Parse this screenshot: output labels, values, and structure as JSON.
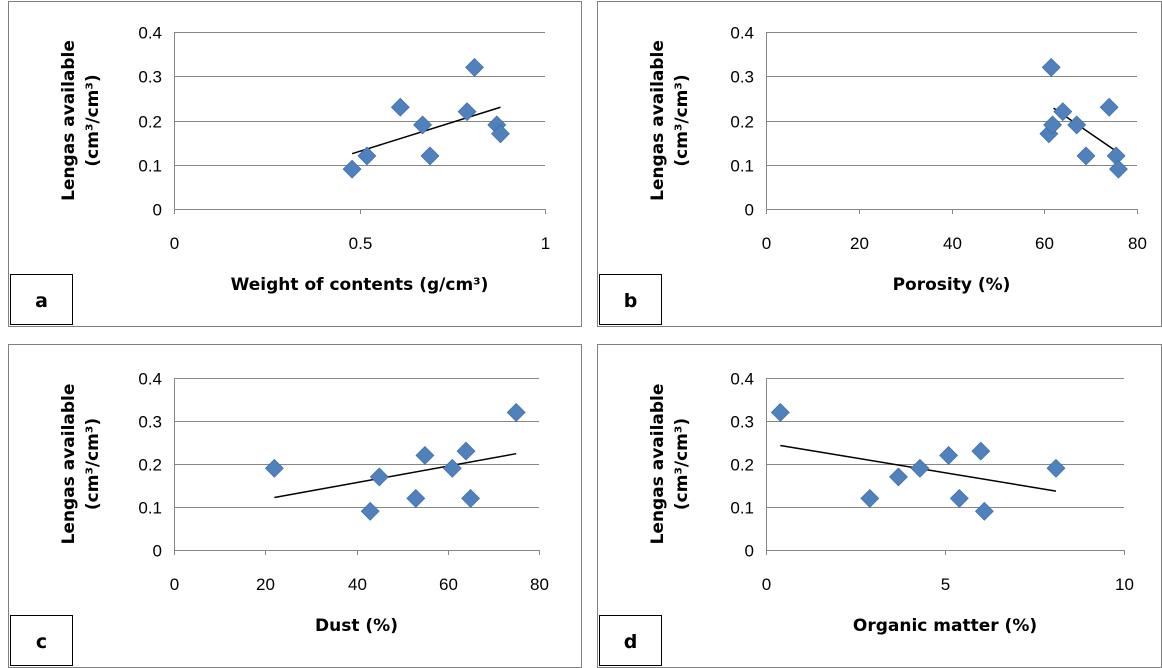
{
  "chart_data": [
    {
      "type": "scatter",
      "panel_label": "a",
      "xlabel": "Weight of contents (g/cm³)",
      "ylabel_line1": "Lengas available",
      "ylabel_line2": "(cm³/cm³)",
      "xlim": [
        0,
        1
      ],
      "ylim": [
        0,
        0.4
      ],
      "x_ticks": [
        0,
        0.5,
        1
      ],
      "x_tick_labels": [
        "0",
        "0.5",
        "1"
      ],
      "y_ticks": [
        0,
        0.1,
        0.2,
        0.3,
        0.4
      ],
      "y_tick_labels": [
        "0",
        "0.1",
        "0.2",
        "0.3",
        "0.4"
      ],
      "grid": "horizontal",
      "marker": "diamond",
      "marker_color": "#4f81bd",
      "points": [
        {
          "x": 0.48,
          "y": 0.09
        },
        {
          "x": 0.52,
          "y": 0.12
        },
        {
          "x": 0.61,
          "y": 0.23
        },
        {
          "x": 0.67,
          "y": 0.19
        },
        {
          "x": 0.69,
          "y": 0.12
        },
        {
          "x": 0.79,
          "y": 0.22
        },
        {
          "x": 0.81,
          "y": 0.32
        },
        {
          "x": 0.87,
          "y": 0.19
        },
        {
          "x": 0.88,
          "y": 0.17
        }
      ],
      "trendline": {
        "x1": 0.48,
        "y1": 0.125,
        "x2": 0.88,
        "y2": 0.23
      }
    },
    {
      "type": "scatter",
      "panel_label": "b",
      "xlabel": "Porosity (%)",
      "ylabel_line1": "Lengas available",
      "ylabel_line2": "(cm³/cm³)",
      "xlim": [
        0,
        80
      ],
      "ylim": [
        0,
        0.4
      ],
      "x_ticks": [
        0,
        20,
        40,
        60,
        80
      ],
      "x_tick_labels": [
        "0",
        "20",
        "40",
        "60",
        "80"
      ],
      "y_ticks": [
        0,
        0.1,
        0.2,
        0.3,
        0.4
      ],
      "y_tick_labels": [
        "0",
        "0.1",
        "0.2",
        "0.3",
        "0.4"
      ],
      "grid": "horizontal",
      "marker": "diamond",
      "marker_color": "#4f81bd",
      "points": [
        {
          "x": 61.5,
          "y": 0.32
        },
        {
          "x": 61,
          "y": 0.17
        },
        {
          "x": 61.8,
          "y": 0.19
        },
        {
          "x": 64,
          "y": 0.22
        },
        {
          "x": 67,
          "y": 0.19
        },
        {
          "x": 69,
          "y": 0.12
        },
        {
          "x": 74,
          "y": 0.23
        },
        {
          "x": 75.5,
          "y": 0.12
        },
        {
          "x": 76,
          "y": 0.09
        }
      ],
      "trendline": {
        "x1": 62,
        "y1": 0.228,
        "x2": 76,
        "y2": 0.127
      }
    },
    {
      "type": "scatter",
      "panel_label": "c",
      "xlabel": "Dust (%)",
      "ylabel_line1": "Lengas available",
      "ylabel_line2": "(cm³/cm³)",
      "xlim": [
        0,
        80
      ],
      "ylim": [
        0,
        0.4
      ],
      "x_ticks": [
        0,
        20,
        40,
        60,
        80
      ],
      "x_tick_labels": [
        "0",
        "20",
        "40",
        "60",
        "80"
      ],
      "y_ticks": [
        0,
        0.1,
        0.2,
        0.3,
        0.4
      ],
      "y_tick_labels": [
        "0",
        "0.1",
        "0.2",
        "0.3",
        "0.4"
      ],
      "grid": "horizontal",
      "marker": "diamond",
      "marker_color": "#4f81bd",
      "points": [
        {
          "x": 22,
          "y": 0.19
        },
        {
          "x": 43,
          "y": 0.09
        },
        {
          "x": 45,
          "y": 0.17
        },
        {
          "x": 53,
          "y": 0.12
        },
        {
          "x": 55,
          "y": 0.22
        },
        {
          "x": 61,
          "y": 0.19
        },
        {
          "x": 64,
          "y": 0.23
        },
        {
          "x": 65,
          "y": 0.12
        },
        {
          "x": 75,
          "y": 0.32
        }
      ],
      "trendline": {
        "x1": 22,
        "y1": 0.122,
        "x2": 75,
        "y2": 0.224
      }
    },
    {
      "type": "scatter",
      "panel_label": "d",
      "xlabel": "Organic matter (%)",
      "ylabel_line1": "Lengas available",
      "ylabel_line2": "(cm³/cm³)",
      "xlim": [
        0,
        10
      ],
      "ylim": [
        0,
        0.4
      ],
      "x_ticks": [
        0,
        5,
        10
      ],
      "x_tick_labels": [
        "0",
        "5",
        "10"
      ],
      "y_ticks": [
        0,
        0.1,
        0.2,
        0.3,
        0.4
      ],
      "y_tick_labels": [
        "0",
        "0.1",
        "0.2",
        "0.3",
        "0.4"
      ],
      "grid": "horizontal",
      "marker": "diamond",
      "marker_color": "#4f81bd",
      "points": [
        {
          "x": 0.4,
          "y": 0.32
        },
        {
          "x": 2.9,
          "y": 0.12
        },
        {
          "x": 3.7,
          "y": 0.17
        },
        {
          "x": 4.3,
          "y": 0.19
        },
        {
          "x": 5.1,
          "y": 0.22
        },
        {
          "x": 5.4,
          "y": 0.12
        },
        {
          "x": 6.0,
          "y": 0.23
        },
        {
          "x": 6.1,
          "y": 0.09
        },
        {
          "x": 8.1,
          "y": 0.19
        }
      ],
      "trendline": {
        "x1": 0.4,
        "y1": 0.243,
        "x2": 8.1,
        "y2": 0.137
      }
    }
  ]
}
